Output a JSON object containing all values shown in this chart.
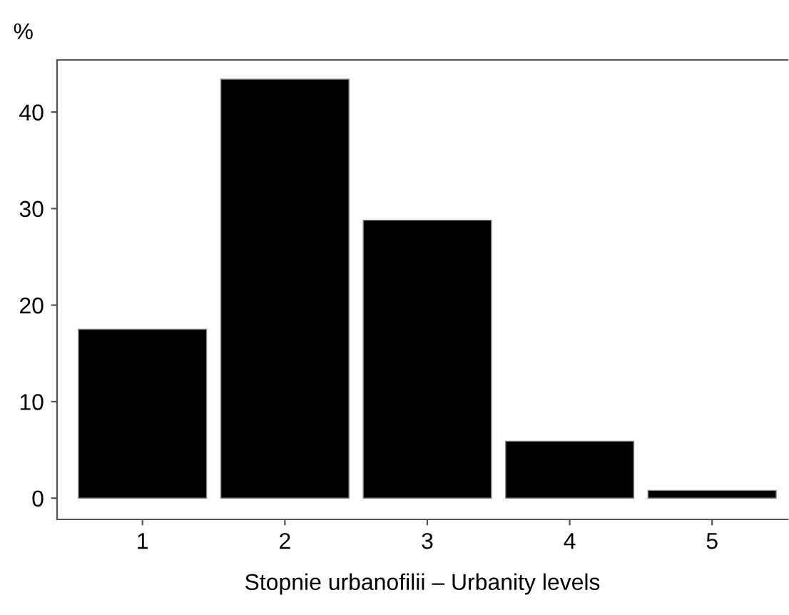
{
  "chart_data": {
    "type": "bar",
    "ylabel": "%",
    "xlabel": "Stopnie urbanofilii – Urbanity levels",
    "categories": [
      "1",
      "2",
      "3",
      "4",
      "5"
    ],
    "values": [
      17.5,
      43.4,
      28.8,
      5.9,
      0.8
    ],
    "color": "#000000",
    "ylim": [
      -2.2,
      45.4
    ],
    "yticks": [
      0,
      10,
      20,
      30,
      40
    ],
    "grid": false
  }
}
